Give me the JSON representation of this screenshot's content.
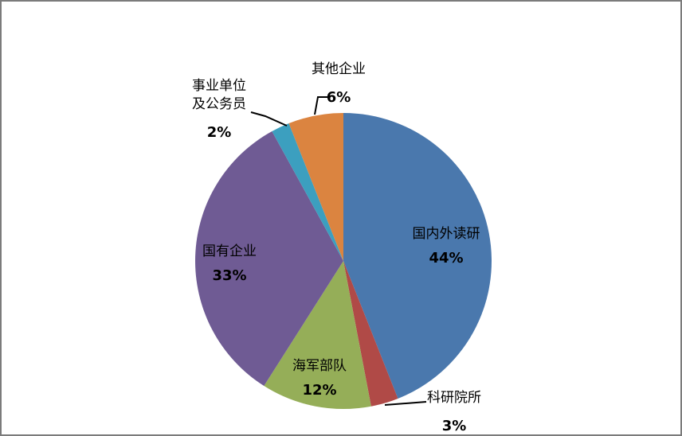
{
  "chart_data": {
    "type": "pie",
    "title": "",
    "start_angle_deg": 0,
    "direction": "clockwise",
    "total": 100,
    "slices": [
      {
        "label": "国内外读研",
        "value": 44,
        "pct_label": "44%",
        "color": "#4A78AD"
      },
      {
        "label": "科研院所",
        "value": 3,
        "pct_label": "3%",
        "color": "#B04A47"
      },
      {
        "label": "海军部队",
        "value": 12,
        "pct_label": "12%",
        "color": "#95AE58"
      },
      {
        "label": "国有企业",
        "value": 33,
        "pct_label": "33%",
        "color": "#6F5B94"
      },
      {
        "label": "事业单位及公务员",
        "value": 2,
        "pct_label": "2%",
        "color": "#3C9FBF"
      },
      {
        "label": "其他企业",
        "value": 6,
        "pct_label": "6%",
        "color": "#DB8440"
      }
    ],
    "leader_line_color": "#000000",
    "canvas_border_color": "#7b7b7b",
    "background_color": "#ffffff"
  }
}
